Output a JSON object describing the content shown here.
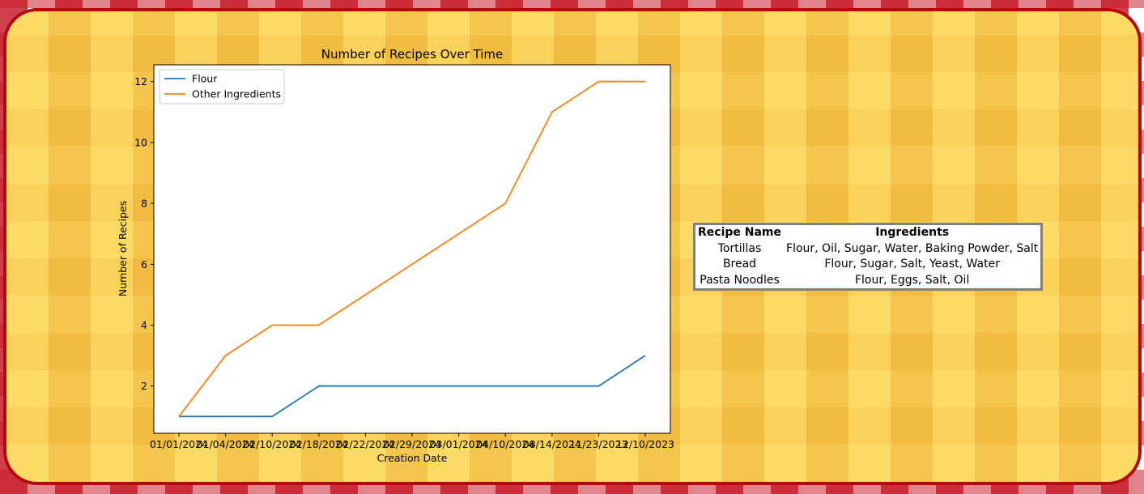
{
  "chart_data": {
    "type": "line",
    "title": "Number of Recipes Over Time",
    "xlabel": "Creation Date",
    "ylabel": "Number of Recipes",
    "x": [
      "01/01/2024",
      "01/04/2024",
      "02/10/2024",
      "02/18/2024",
      "02/22/2024",
      "02/29/2024",
      "03/01/2024",
      "04/10/2024",
      "08/14/2024",
      "11/23/2023",
      "12/10/2023"
    ],
    "series": [
      {
        "name": "Flour",
        "color": "#1f77b4",
        "values": [
          1,
          1,
          1,
          2,
          2,
          2,
          2,
          2,
          2,
          2,
          3
        ]
      },
      {
        "name": "Other Ingredients",
        "color": "#ff7f0e",
        "values": [
          1,
          3,
          4,
          4,
          5,
          6,
          7,
          8,
          11,
          12,
          12
        ]
      }
    ],
    "yticks": [
      2,
      4,
      6,
      8,
      10,
      12
    ],
    "ylim": [
      0.45,
      12.55
    ],
    "legend": "upper-left",
    "grid": false
  },
  "table": {
    "headers": [
      "Recipe Name",
      "Ingredients"
    ],
    "rows": [
      [
        "Tortillas",
        "Flour, Oil, Sugar, Water, Baking Powder, Salt"
      ],
      [
        "Bread",
        "Flour, Sugar, Salt, Yeast, Water"
      ],
      [
        "Pasta Noodles",
        "Flour, Eggs, Salt, Oil"
      ]
    ]
  },
  "colors": {
    "card_border": "#b5080f",
    "card_background": "#f7c94a",
    "tablecloth_red": "#c81e2d"
  }
}
